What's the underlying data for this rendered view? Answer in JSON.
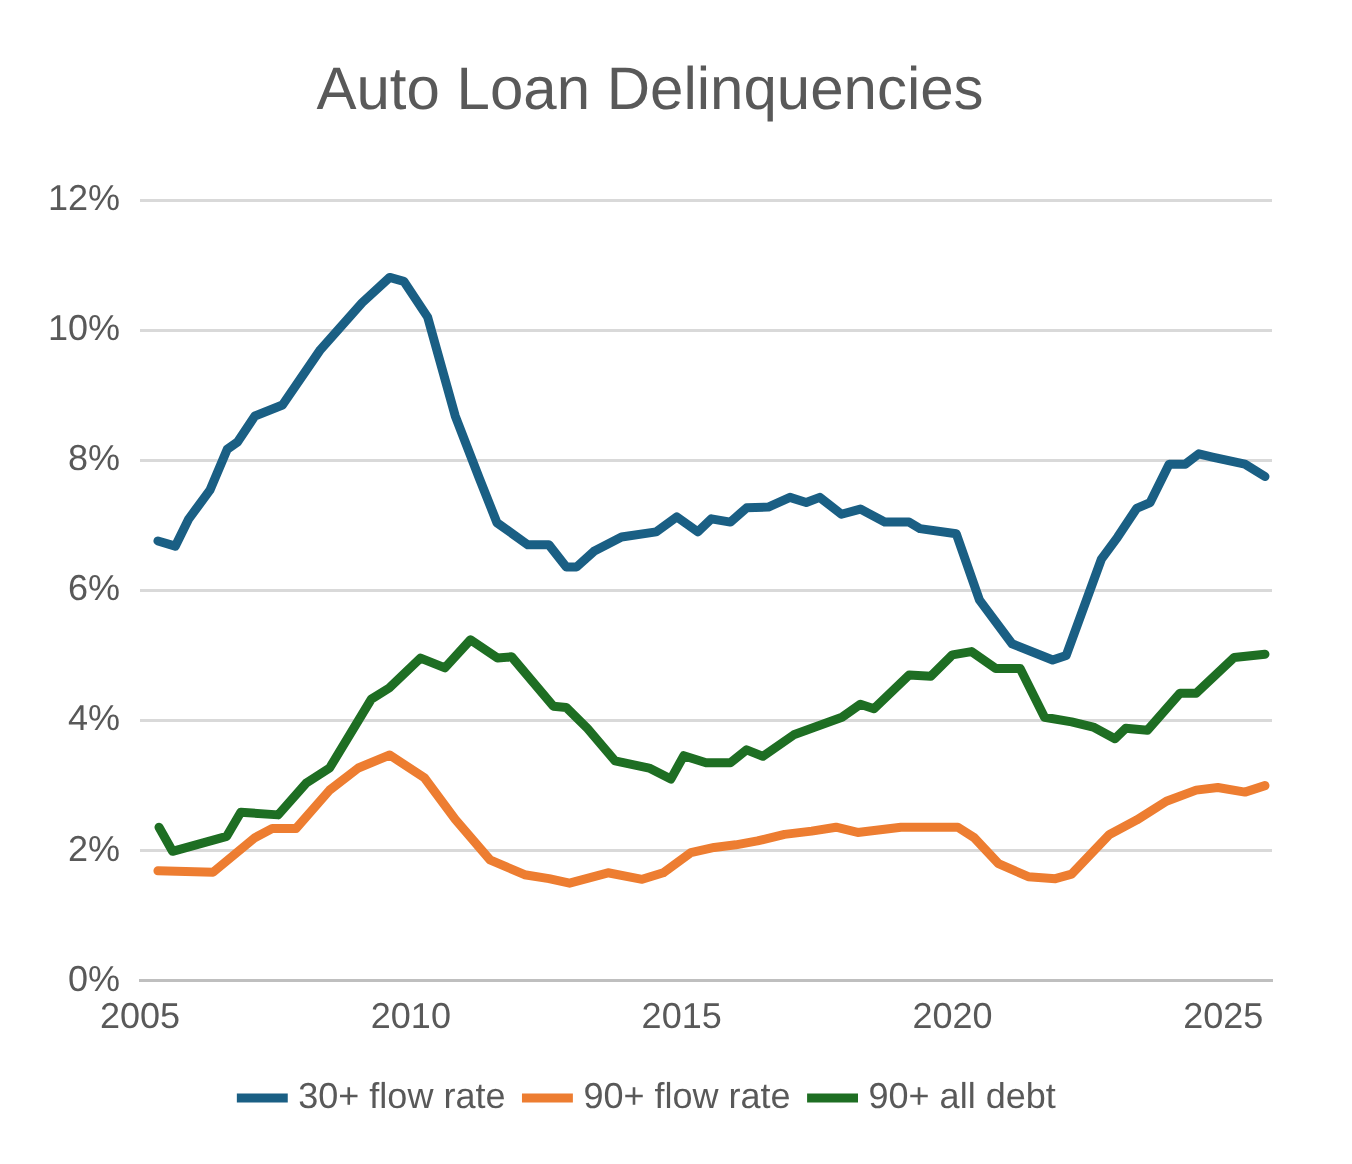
{
  "chart_data": {
    "type": "line",
    "title": "Auto Loan Delinquencies",
    "xlim": [
      2005,
      2025.9
    ],
    "xticks": [
      2005,
      2010,
      2015,
      2020,
      2025
    ],
    "ylim": [
      0,
      12
    ],
    "yticks": [
      {
        "value": 0,
        "label": "0%"
      },
      {
        "value": 2,
        "label": "2%"
      },
      {
        "value": 4,
        "label": "4%"
      },
      {
        "value": 6,
        "label": "6%"
      },
      {
        "value": 8,
        "label": "8%"
      },
      {
        "value": 10,
        "label": "10%"
      },
      {
        "value": 12,
        "label": "12%"
      }
    ],
    "grid": "y",
    "legend": "bottom",
    "marker": "none",
    "line_style": "solid",
    "series": [
      {
        "name": "30+ flow rate",
        "color": "#1a5f84",
        "x": [
          2005.33,
          2005.65,
          2005.9,
          2006.29,
          2006.61,
          2006.8,
          2007.12,
          2007.63,
          2008.33,
          2009.1,
          2009.61,
          2009.87,
          2010.31,
          2010.82,
          2011.27,
          2011.59,
          2012.16,
          2012.55,
          2012.87,
          2013.06,
          2013.38,
          2013.89,
          2014.53,
          2014.91,
          2015.3,
          2015.55,
          2015.9,
          2016.2,
          2016.6,
          2017.0,
          2017.3,
          2017.55,
          2017.95,
          2018.3,
          2018.75,
          2019.2,
          2019.4,
          2020.07,
          2020.5,
          2021.1,
          2021.85,
          2022.1,
          2022.75,
          2023.05,
          2023.4,
          2023.65,
          2024.0,
          2024.3,
          2024.55,
          2024.8,
          2025.4,
          2025.77
        ],
        "values": [
          6.76,
          6.68,
          7.1,
          7.54,
          8.17,
          8.28,
          8.68,
          8.85,
          9.7,
          10.42,
          10.81,
          10.75,
          10.2,
          8.68,
          7.71,
          7.04,
          6.7,
          6.7,
          6.36,
          6.36,
          6.6,
          6.82,
          6.9,
          7.13,
          6.9,
          7.1,
          7.05,
          7.27,
          7.28,
          7.43,
          7.35,
          7.43,
          7.17,
          7.25,
          7.05,
          7.05,
          6.95,
          6.87,
          5.85,
          5.18,
          4.93,
          5.0,
          6.48,
          6.82,
          7.26,
          7.35,
          7.94,
          7.94,
          8.1,
          8.05,
          7.94,
          7.75
        ]
      },
      {
        "name": "90+ flow rate",
        "color": "#ed7d31",
        "x": [
          2005.33,
          2006.35,
          2007.12,
          2007.44,
          2007.88,
          2008.5,
          2009.03,
          2009.61,
          2010.25,
          2010.82,
          2011.46,
          2012.1,
          2012.55,
          2012.93,
          2013.64,
          2014.27,
          2014.66,
          2015.17,
          2015.6,
          2016.0,
          2016.4,
          2016.9,
          2017.4,
          2017.85,
          2018.25,
          2019.05,
          2020.1,
          2020.4,
          2020.85,
          2021.4,
          2021.9,
          2022.2,
          2022.9,
          2023.4,
          2023.95,
          2024.5,
          2024.9,
          2025.4,
          2025.77
        ],
        "values": [
          1.69,
          1.67,
          2.2,
          2.34,
          2.34,
          2.93,
          3.27,
          3.47,
          3.12,
          2.48,
          1.86,
          1.63,
          1.57,
          1.5,
          1.66,
          1.56,
          1.66,
          1.97,
          2.05,
          2.09,
          2.15,
          2.25,
          2.3,
          2.36,
          2.28,
          2.36,
          2.36,
          2.2,
          1.8,
          1.6,
          1.57,
          1.64,
          2.25,
          2.47,
          2.76,
          2.93,
          2.97,
          2.9,
          3.0
        ]
      },
      {
        "name": "90+ all debt",
        "color": "#1e6e23",
        "x": [
          2005.35,
          2005.6,
          2006.6,
          2006.86,
          2007.55,
          2008.07,
          2008.5,
          2009.27,
          2009.6,
          2010.18,
          2010.63,
          2011.1,
          2011.6,
          2011.86,
          2012.63,
          2012.87,
          2013.26,
          2013.77,
          2014.4,
          2014.8,
          2015.04,
          2015.45,
          2015.9,
          2016.2,
          2016.5,
          2017.07,
          2017.96,
          2018.3,
          2018.55,
          2019.2,
          2019.6,
          2020.0,
          2020.35,
          2020.8,
          2021.25,
          2021.7,
          2022.2,
          2022.6,
          2023.0,
          2023.2,
          2023.6,
          2024.2,
          2024.5,
          2025.2,
          2025.77
        ],
        "values": [
          2.36,
          1.99,
          2.22,
          2.59,
          2.55,
          3.04,
          3.27,
          4.33,
          4.5,
          4.96,
          4.81,
          5.24,
          4.96,
          4.98,
          4.22,
          4.2,
          3.88,
          3.38,
          3.27,
          3.1,
          3.46,
          3.35,
          3.35,
          3.55,
          3.45,
          3.78,
          4.05,
          4.25,
          4.18,
          4.7,
          4.68,
          5.01,
          5.06,
          4.8,
          4.8,
          4.05,
          3.98,
          3.9,
          3.72,
          3.88,
          3.85,
          4.42,
          4.42,
          4.97,
          5.02
        ]
      }
    ]
  }
}
